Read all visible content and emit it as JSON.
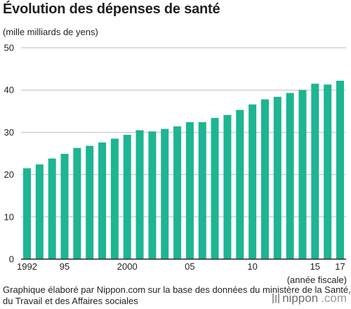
{
  "brand": {
    "name": "nippon",
    "domain": ".com"
  },
  "chart_data": {
    "type": "bar",
    "title": "Évolution des dépenses de santé",
    "ylabel": "(mille milliards de yens)",
    "xlabel": "(année fiscale)",
    "source": "Graphique élaboré par Nippon.com sur la base des données du ministère de la Santé, du Travail et des Affaires sociales",
    "categories": [
      "1992",
      "1993",
      "1994",
      "1995",
      "1996",
      "1997",
      "1998",
      "1999",
      "2000",
      "2001",
      "2002",
      "2003",
      "2004",
      "2005",
      "2006",
      "2007",
      "2008",
      "2009",
      "2010",
      "2011",
      "2012",
      "2013",
      "2014",
      "2015",
      "2016",
      "2017"
    ],
    "values": [
      21.5,
      22.4,
      23.8,
      24.9,
      26.3,
      26.8,
      27.6,
      28.5,
      29.4,
      30.5,
      30.2,
      30.8,
      31.4,
      32.4,
      32.4,
      33.4,
      34.1,
      35.3,
      36.6,
      37.8,
      38.4,
      39.3,
      40.0,
      41.5,
      41.3,
      42.2
    ],
    "color": "#1db592",
    "x_tick_labels": [
      {
        "category": "1992",
        "label": "1992"
      },
      {
        "category": "1995",
        "label": "95"
      },
      {
        "category": "2000",
        "label": "2000"
      },
      {
        "category": "2005",
        "label": "05"
      },
      {
        "category": "2010",
        "label": "10"
      },
      {
        "category": "2015",
        "label": "15"
      },
      {
        "category": "2017",
        "label": "17"
      }
    ],
    "y_ticks": [
      0,
      10,
      20,
      30,
      40,
      50
    ],
    "ylim": [
      0,
      50
    ],
    "grid": true
  }
}
